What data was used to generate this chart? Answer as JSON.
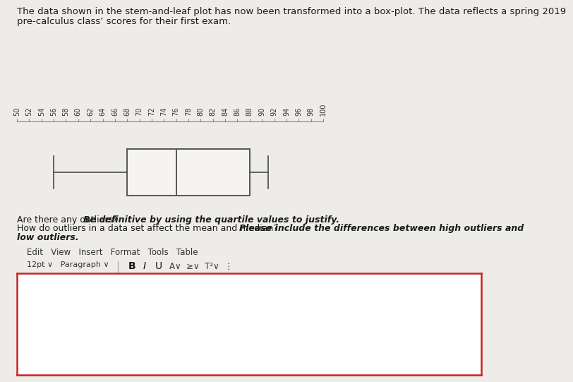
{
  "title_line1": "The data shown in the stem-and-leaf plot has now been transformed into a box-plot. The data reflects a spring 2019",
  "title_line2": "pre-calculus class’ scores for their first exam.",
  "question_text1_normal": "Are there any outliers? ",
  "question_text1_bold_italic": "Be definitive by using the quartile values to justify.",
  "question_text2_normal": "How do outliers in a data set affect the mean and median? ",
  "question_text2_bold_italic": "Please include the differences between high outliers and",
  "question_text2_line2": "low outliers.",
  "whisker_low": 56,
  "Q1": 68,
  "median": 76,
  "Q3": 88,
  "whisker_high": 91,
  "xmin": 50,
  "xmax": 100,
  "xtick_step": 2,
  "bg_color": "#eeece8",
  "box_color": "#f5f4f1",
  "box_edge_color": "#555555",
  "whisker_color": "#555555",
  "title_fontsize": 9.5,
  "label_fontsize": 9,
  "answer_box_color": "#ffffff",
  "answer_box_edge_color": "#cc2222"
}
